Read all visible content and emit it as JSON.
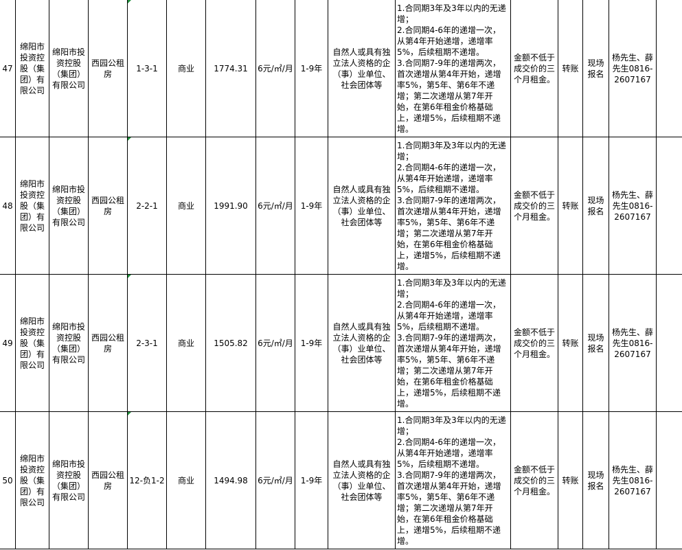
{
  "rows": [
    {
      "no": "47",
      "owner": "绵阳市投资控股（集团）有限公司",
      "lessor": "绵阳市投资控股（集团）有限公司",
      "project": "西园公租房",
      "unit": "1-3-1",
      "use": "商业",
      "area": "1774.31",
      "price": "6元/㎡/月",
      "term": "1-9年",
      "qualification": "自然人或具有独立法人资格的企（事）业单位、社会团体等",
      "increase": "1.合同期3年及3年以内的无递增；\n2.合同期4-6年的递增一次，从第4年开始递增，递增率5%，后续租期不递增。\n3.合同期7-9年的递增两次，首次递增从第4年开始，递增率5%，第5年、第6年不递增；第二次递增从第7年开始，在第6年租金价格基础上，递增5%，后续租期不递增。",
      "deposit": "金额不低于成交价的三个月租金。",
      "payment": "转账",
      "registration": "现场报名",
      "contact": "杨先生、薛先生0816-2607167",
      "note": ""
    },
    {
      "no": "48",
      "owner": "绵阳市投资控股（集团）有限公司",
      "lessor": "绵阳市投资控股（集团）有限公司",
      "project": "西园公租房",
      "unit": "2-2-1",
      "use": "商业",
      "area": "1991.90",
      "price": "6元/㎡/月",
      "term": "1-9年",
      "qualification": "自然人或具有独立法人资格的企（事）业单位、社会团体等",
      "increase": "1.合同期3年及3年以内的无递增；\n2.合同期4-6年的递增一次，从第4年开始递增，递增率5%，后续租期不递增。\n3.合同期7-9年的递增两次，首次递增从第4年开始，递增率5%，第5年、第6年不递增；第二次递增从第7年开始，在第6年租金价格基础上，递增5%，后续租期不递增。",
      "deposit": "金额不低于成交价的三个月租金。",
      "payment": "转账",
      "registration": "现场报名",
      "contact": "杨先生、薛先生0816-2607167",
      "note": ""
    },
    {
      "no": "49",
      "owner": "绵阳市投资控股（集团）有限公司",
      "lessor": "绵阳市投资控股（集团）有限公司",
      "project": "西园公租房",
      "unit": "2-3-1",
      "use": "商业",
      "area": "1505.82",
      "price": "6元/㎡/月",
      "term": "1-9年",
      "qualification": "自然人或具有独立法人资格的企（事）业单位、社会团体等",
      "increase": "1.合同期3年及3年以内的无递增；\n2.合同期4-6年的递增一次，从第4年开始递增，递增率5%，后续租期不递增。\n3.合同期7-9年的递增两次，首次递增从第4年开始，递增率5%，第5年、第6年不递增；第二次递增从第7年开始，在第6年租金价格基础上，递增5%，后续租期不递增。",
      "deposit": "金额不低于成交价的三个月租金。",
      "payment": "转账",
      "registration": "现场报名",
      "contact": "杨先生、薛先生0816-2607167",
      "note": ""
    },
    {
      "no": "50",
      "owner": "绵阳市投资控股（集团）有限公司",
      "lessor": "绵阳市投资控股（集团）有限公司",
      "project": "西园公租房",
      "unit": "12-负1-2",
      "use": "商业",
      "area": "1494.98",
      "price": "6元/㎡/月",
      "term": "1-9年",
      "qualification": "自然人或具有独立法人资格的企（事）业单位、社会团体等",
      "increase": "1.合同期3年及3年以内的无递增；\n2.合同期4-6年的递增一次，从第4年开始递增，递增率5%，后续租期不递增。\n3.合同期7-9年的递增两次，首次递增从第4年开始，递增率5%，第5年、第6年不递增；第二次递增从第7年开始，在第6年租金价格基础上，递增5%，后续租期不递增。",
      "deposit": "金额不低于成交价的三个月租金。",
      "payment": "转账",
      "registration": "现场报名",
      "contact": "杨先生、薛先生0816-2607167",
      "note": ""
    }
  ]
}
